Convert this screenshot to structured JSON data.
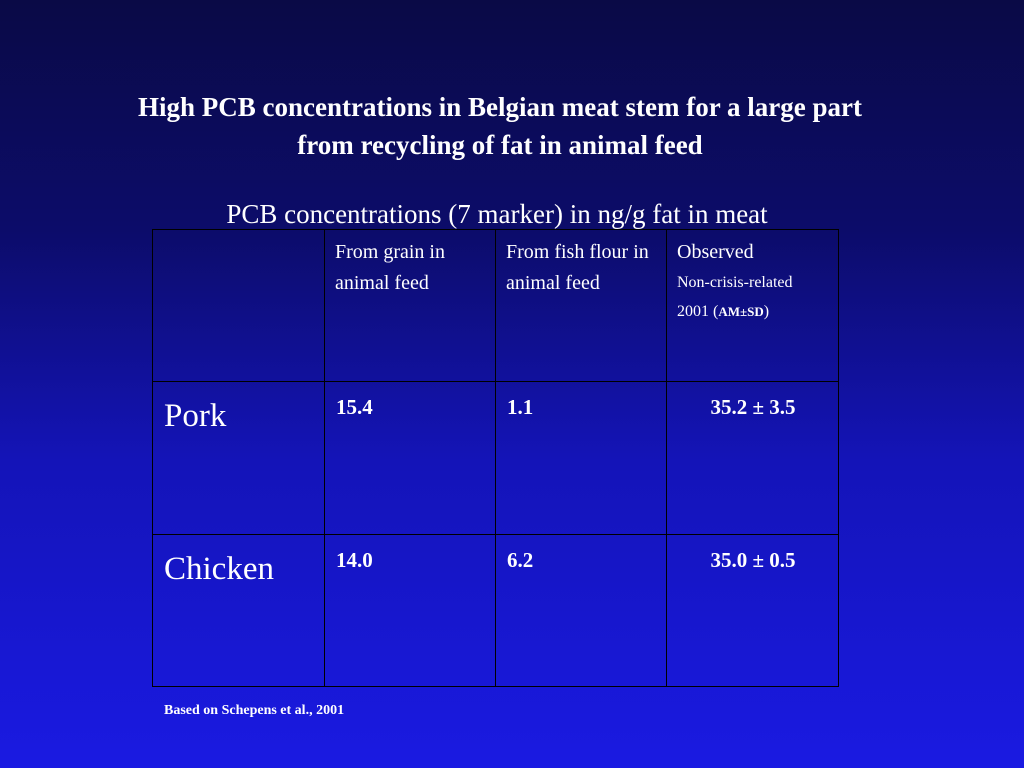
{
  "title": {
    "line1": "High PCB concentrations in Belgian meat stem for a large part",
    "line2": "from recycling of fat in animal feed"
  },
  "table": {
    "caption": "PCB concentrations (7 marker) in ng/g fat in meat",
    "columns": {
      "col1": "From grain in animal feed",
      "col2": "From fish flour in animal feed",
      "col3_line1": "Observed",
      "col3_line2": "Non-crisis-related",
      "col3_line3_prefix": "2001 (",
      "col3_line3_amsd": "AM±SD",
      "col3_line3_suffix": ")"
    },
    "rows": [
      {
        "label": "Pork",
        "grain": "15.4",
        "fish": "1.1",
        "observed": "35.2 ± 3.5"
      },
      {
        "label": "Chicken",
        "grain": "14.0",
        "fish": "6.2",
        "observed": "35.0 ± 0.5"
      }
    ]
  },
  "source": "Based on Schepens et al., 2001"
}
